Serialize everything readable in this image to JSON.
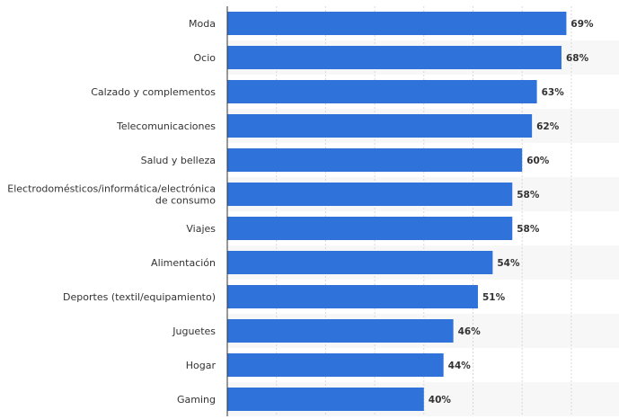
{
  "chart_data": {
    "type": "bar",
    "orientation": "horizontal",
    "title": "",
    "xlabel": "",
    "ylabel": "",
    "xlim": [
      0,
      100
    ],
    "grid": true,
    "categories": [
      "Moda",
      "Ocio",
      "Calzado y complementos",
      "Telecomunicaciones",
      "Salud y belleza",
      "Electrodomésticos/informática/electrónica de consumo",
      "Viajes",
      "Alimentación",
      "Deportes (textil/equipamiento)",
      "Juguetes",
      "Hogar",
      "Gaming"
    ],
    "category_lines": [
      [
        "Moda"
      ],
      [
        "Ocio"
      ],
      [
        "Calzado y complementos"
      ],
      [
        "Telecomunicaciones"
      ],
      [
        "Salud y belleza"
      ],
      [
        "Electrodomésticos/informática/electrónica",
        "de consumo"
      ],
      [
        "Viajes"
      ],
      [
        "Alimentación"
      ],
      [
        "Deportes (textil/equipamiento)"
      ],
      [
        "Juguetes"
      ],
      [
        "Hogar"
      ],
      [
        "Gaming"
      ]
    ],
    "values": [
      69,
      68,
      63,
      62,
      60,
      58,
      58,
      54,
      51,
      46,
      44,
      40
    ],
    "value_labels": [
      "69%",
      "68%",
      "63%",
      "62%",
      "60%",
      "58%",
      "58%",
      "54%",
      "51%",
      "46%",
      "44%",
      "40%"
    ],
    "unit": "%",
    "bar_color": "#2f72d9"
  }
}
